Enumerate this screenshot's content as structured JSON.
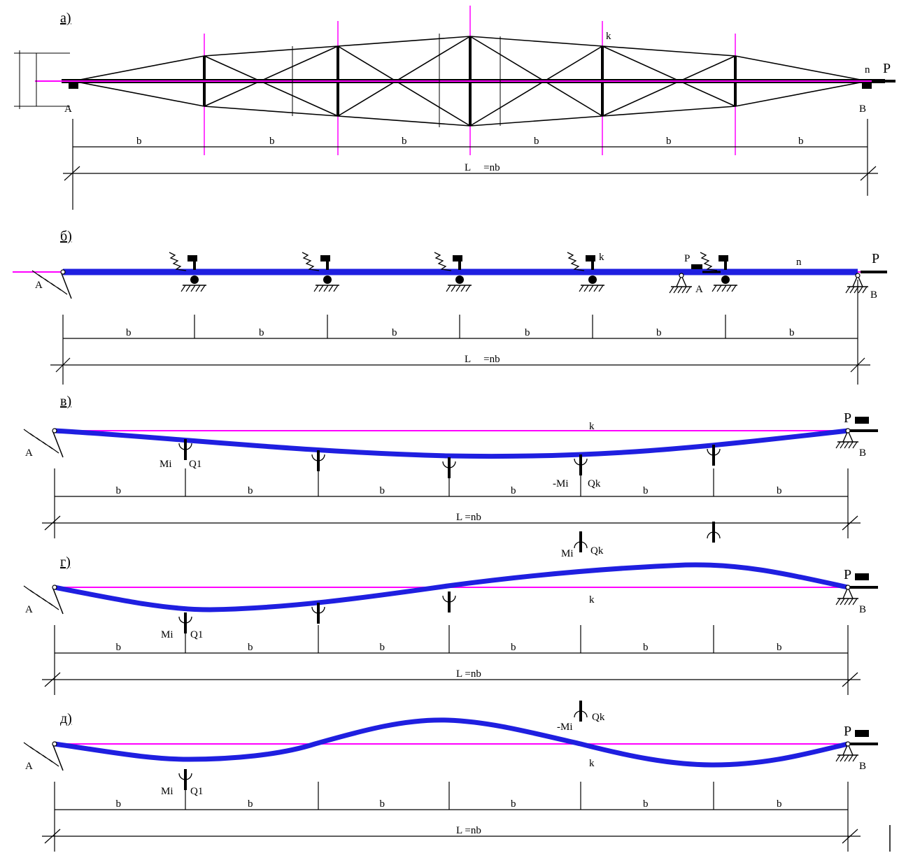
{
  "colors": {
    "beam": "#1f1fe0",
    "axis": "#ff00ff",
    "ink": "#000000"
  },
  "panels": {
    "a": {
      "label": "a)",
      "span": "b",
      "length": "L",
      "length_tail": "=nb",
      "k": "k",
      "n": "n",
      "p": "P",
      "left_support": "A",
      "right_support": "B"
    },
    "b": {
      "label": "б)",
      "span": "b",
      "length": "L",
      "length_tail": "=nb",
      "k": "k",
      "n": "n",
      "p": "P",
      "left_support": "A",
      "right_support": "B",
      "mid_support": "A",
      "p_near": "P"
    },
    "c": {
      "label": "в)",
      "span": "b",
      "length": "L",
      "length_tail": "=nb",
      "k": "k",
      "p": "P",
      "left_support": "A",
      "right_support": "B",
      "m1": "Mi",
      "q1": "Q1",
      "mk": "-Mi",
      "qk": "Qk"
    },
    "d": {
      "label": "г)",
      "span": "b",
      "length": "L",
      "length_tail": "=nb",
      "k": "k",
      "p": "P",
      "left_support": "A",
      "right_support": "B",
      "m1": "Mi",
      "q1": "Q1",
      "mk": "Mi",
      "qk": "Qk"
    },
    "e": {
      "label": "д)",
      "span": "b",
      "length": "L",
      "length_tail": "=nb",
      "k": "k",
      "p": "P",
      "left_support": "A",
      "right_support": "B",
      "m1": "Mi",
      "q1": "Q1",
      "mk": "-Mi",
      "qk": "Qk"
    }
  }
}
